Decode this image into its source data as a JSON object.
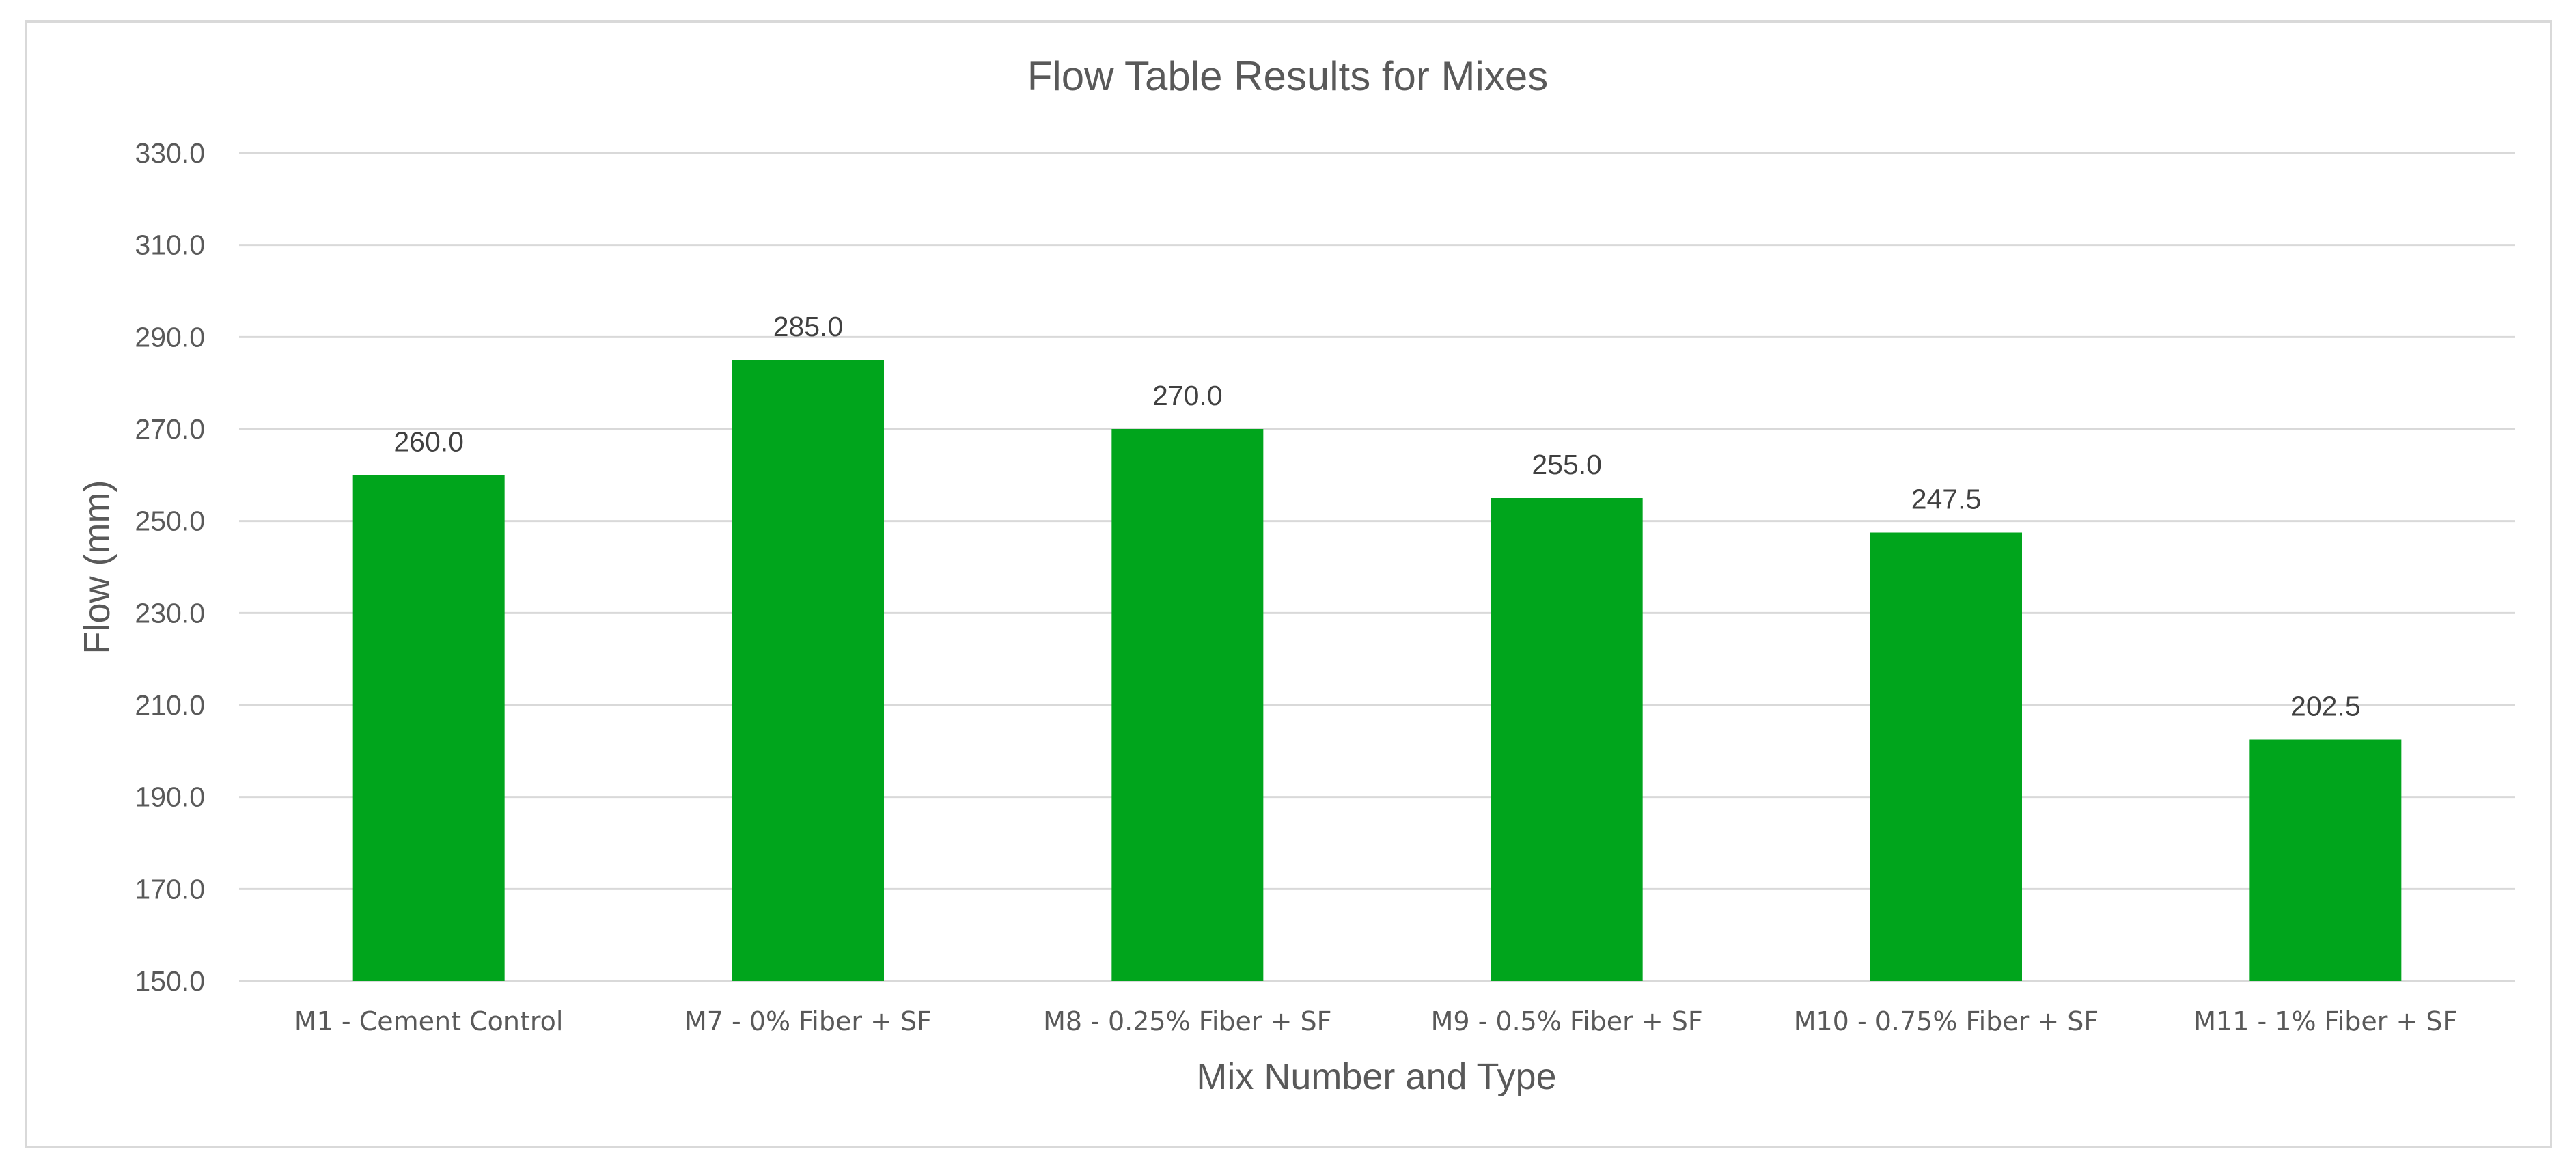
{
  "chart_data": {
    "type": "bar",
    "title": "Flow Table Results for Mixes",
    "xlabel": "Mix Number and Type",
    "ylabel": "Flow (mm)",
    "categories": [
      "M1 - Cement Control",
      "M7 - 0% Fiber + SF",
      "M8 - 0.25% Fiber + SF",
      "M9 - 0.5% Fiber + SF",
      "M10 - 0.75% Fiber + SF",
      "M11 - 1% Fiber + SF"
    ],
    "values": [
      260.0,
      285.0,
      270.0,
      255.0,
      247.5,
      202.5
    ],
    "data_labels": [
      "260.0",
      "285.0",
      "270.0",
      "255.0",
      "247.5",
      "202.5"
    ],
    "ylim": [
      150,
      330
    ],
    "yticks": [
      150,
      170,
      190,
      210,
      230,
      250,
      270,
      290,
      310,
      330
    ],
    "ytick_labels": [
      "150.0",
      "170.0",
      "190.0",
      "210.0",
      "230.0",
      "250.0",
      "270.0",
      "290.0",
      "310.0",
      "330.0"
    ],
    "grid": true,
    "legend": "none",
    "colors": {
      "bar": "#00a51c",
      "grid": "#d9d9d9",
      "text": "#595959"
    }
  }
}
